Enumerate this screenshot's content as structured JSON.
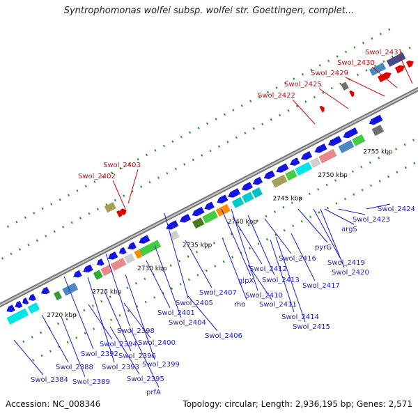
{
  "title": "Syntrophomonas wolfei subsp. wolfei str. Goettingen, complet...",
  "footer": {
    "accession": "Accession: NC_008346",
    "summary": "Topology: circular; Length: 2,936,195 bp; Genes: 2,571"
  },
  "colors": {
    "backbone": "#8a8a8a",
    "forward_strand_label": "#e00000",
    "reverse_strand_label": "#1a1ad8",
    "tick": "#2f8f2f",
    "gene_blue": "#1414e0"
  },
  "scale": [
    {
      "label": "2720 kbp",
      "pos": 2720
    },
    {
      "label": "2725 kbp",
      "pos": 2725
    },
    {
      "label": "2730 kbp",
      "pos": 2730
    },
    {
      "label": "2735 kbp",
      "pos": 2735
    },
    {
      "label": "2740 kbp",
      "pos": 2740
    },
    {
      "label": "2745 kbp",
      "pos": 2745
    },
    {
      "label": "2750 kbp",
      "pos": 2750
    },
    {
      "label": "2755 kbp",
      "pos": 2755
    }
  ],
  "forward_labels": [
    {
      "name": "Swol_2402"
    },
    {
      "name": "Swol_2403"
    },
    {
      "name": "Swol_2422"
    },
    {
      "name": "Swol_2425"
    },
    {
      "name": "Swol_2429"
    },
    {
      "name": "Swol_2430"
    },
    {
      "name": "Swol_2431"
    }
  ],
  "reverse_labels": [
    {
      "name": "Swol_2384"
    },
    {
      "name": "Swol_2388"
    },
    {
      "name": "Swol_2389"
    },
    {
      "name": "Swol_2392"
    },
    {
      "name": "Swol_2393"
    },
    {
      "name": "Swol_2394"
    },
    {
      "name": "Swol_2395"
    },
    {
      "name": "Swol_2396"
    },
    {
      "name": "Swol_2398"
    },
    {
      "name": "Swol_2399"
    },
    {
      "name": "Swol_2400"
    },
    {
      "name": "Swol_2401"
    },
    {
      "name": "prfA"
    },
    {
      "name": "Swol_2404"
    },
    {
      "name": "Swol_2405"
    },
    {
      "name": "Swol_2406"
    },
    {
      "name": "Swol_2407"
    },
    {
      "name": "rho"
    },
    {
      "name": "glpX"
    },
    {
      "name": "Swol_2410"
    },
    {
      "name": "Swol_2411"
    },
    {
      "name": "Swol_2412"
    },
    {
      "name": "Swol_2413"
    },
    {
      "name": "Swol_2414"
    },
    {
      "name": "Swol_2415"
    },
    {
      "name": "Swol_2416"
    },
    {
      "name": "Swol_2417"
    },
    {
      "name": "pyrG"
    },
    {
      "name": "Swol_2419"
    },
    {
      "name": "Swol_2420"
    },
    {
      "name": "argS"
    },
    {
      "name": "Swol_2423"
    },
    {
      "name": "Swol_2424"
    }
  ]
}
